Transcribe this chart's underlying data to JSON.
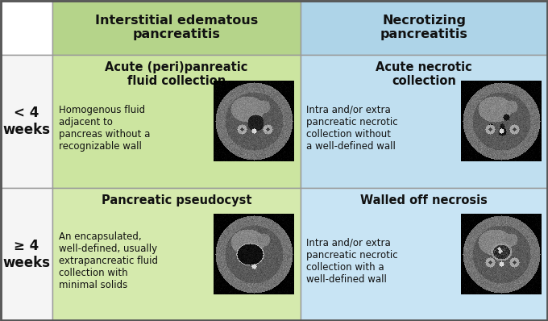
{
  "col_headers": [
    "Interstitial edematous\npancreatitis",
    "Necrotizing\npancreatitis"
  ],
  "col_header_colors": [
    "#b5d48a",
    "#aed4e8"
  ],
  "row_labels": [
    "< 4\nweeks",
    "≥ 4\nweeks"
  ],
  "cell_colors_green": [
    "#cce5a0",
    "#d5eaad"
  ],
  "cell_colors_blue": [
    "#c0dff0",
    "#c8e4f4"
  ],
  "cell_titles": [
    [
      "Acute (peri)panreatic\nfluid collection",
      "Acute necrotic\ncollection"
    ],
    [
      "Pancreatic pseudocyst",
      "Walled off necrosis"
    ]
  ],
  "cell_descriptions": [
    [
      "Homogenous fluid\nadjacent to\npancreas without a\nrecognizable wall",
      "Intra and/or extra\npancreatic necrotic\ncollection without\na well-defined wall"
    ],
    [
      "An encapsulated,\nwell-defined, usually\nextrapancreatic fluid\ncollection with\nminimal solids",
      "Intra and/or extra\npancreatic necrotic\ncollection with a\nwell-defined wall"
    ]
  ],
  "border_color": "#999999",
  "text_color": "#111111",
  "outer_border_color": "#555555",
  "background_color": "#ffffff",
  "header_fontsize": 11.5,
  "cell_title_fontsize": 10.5,
  "desc_fontsize": 8.5,
  "row_label_fontsize": 12
}
